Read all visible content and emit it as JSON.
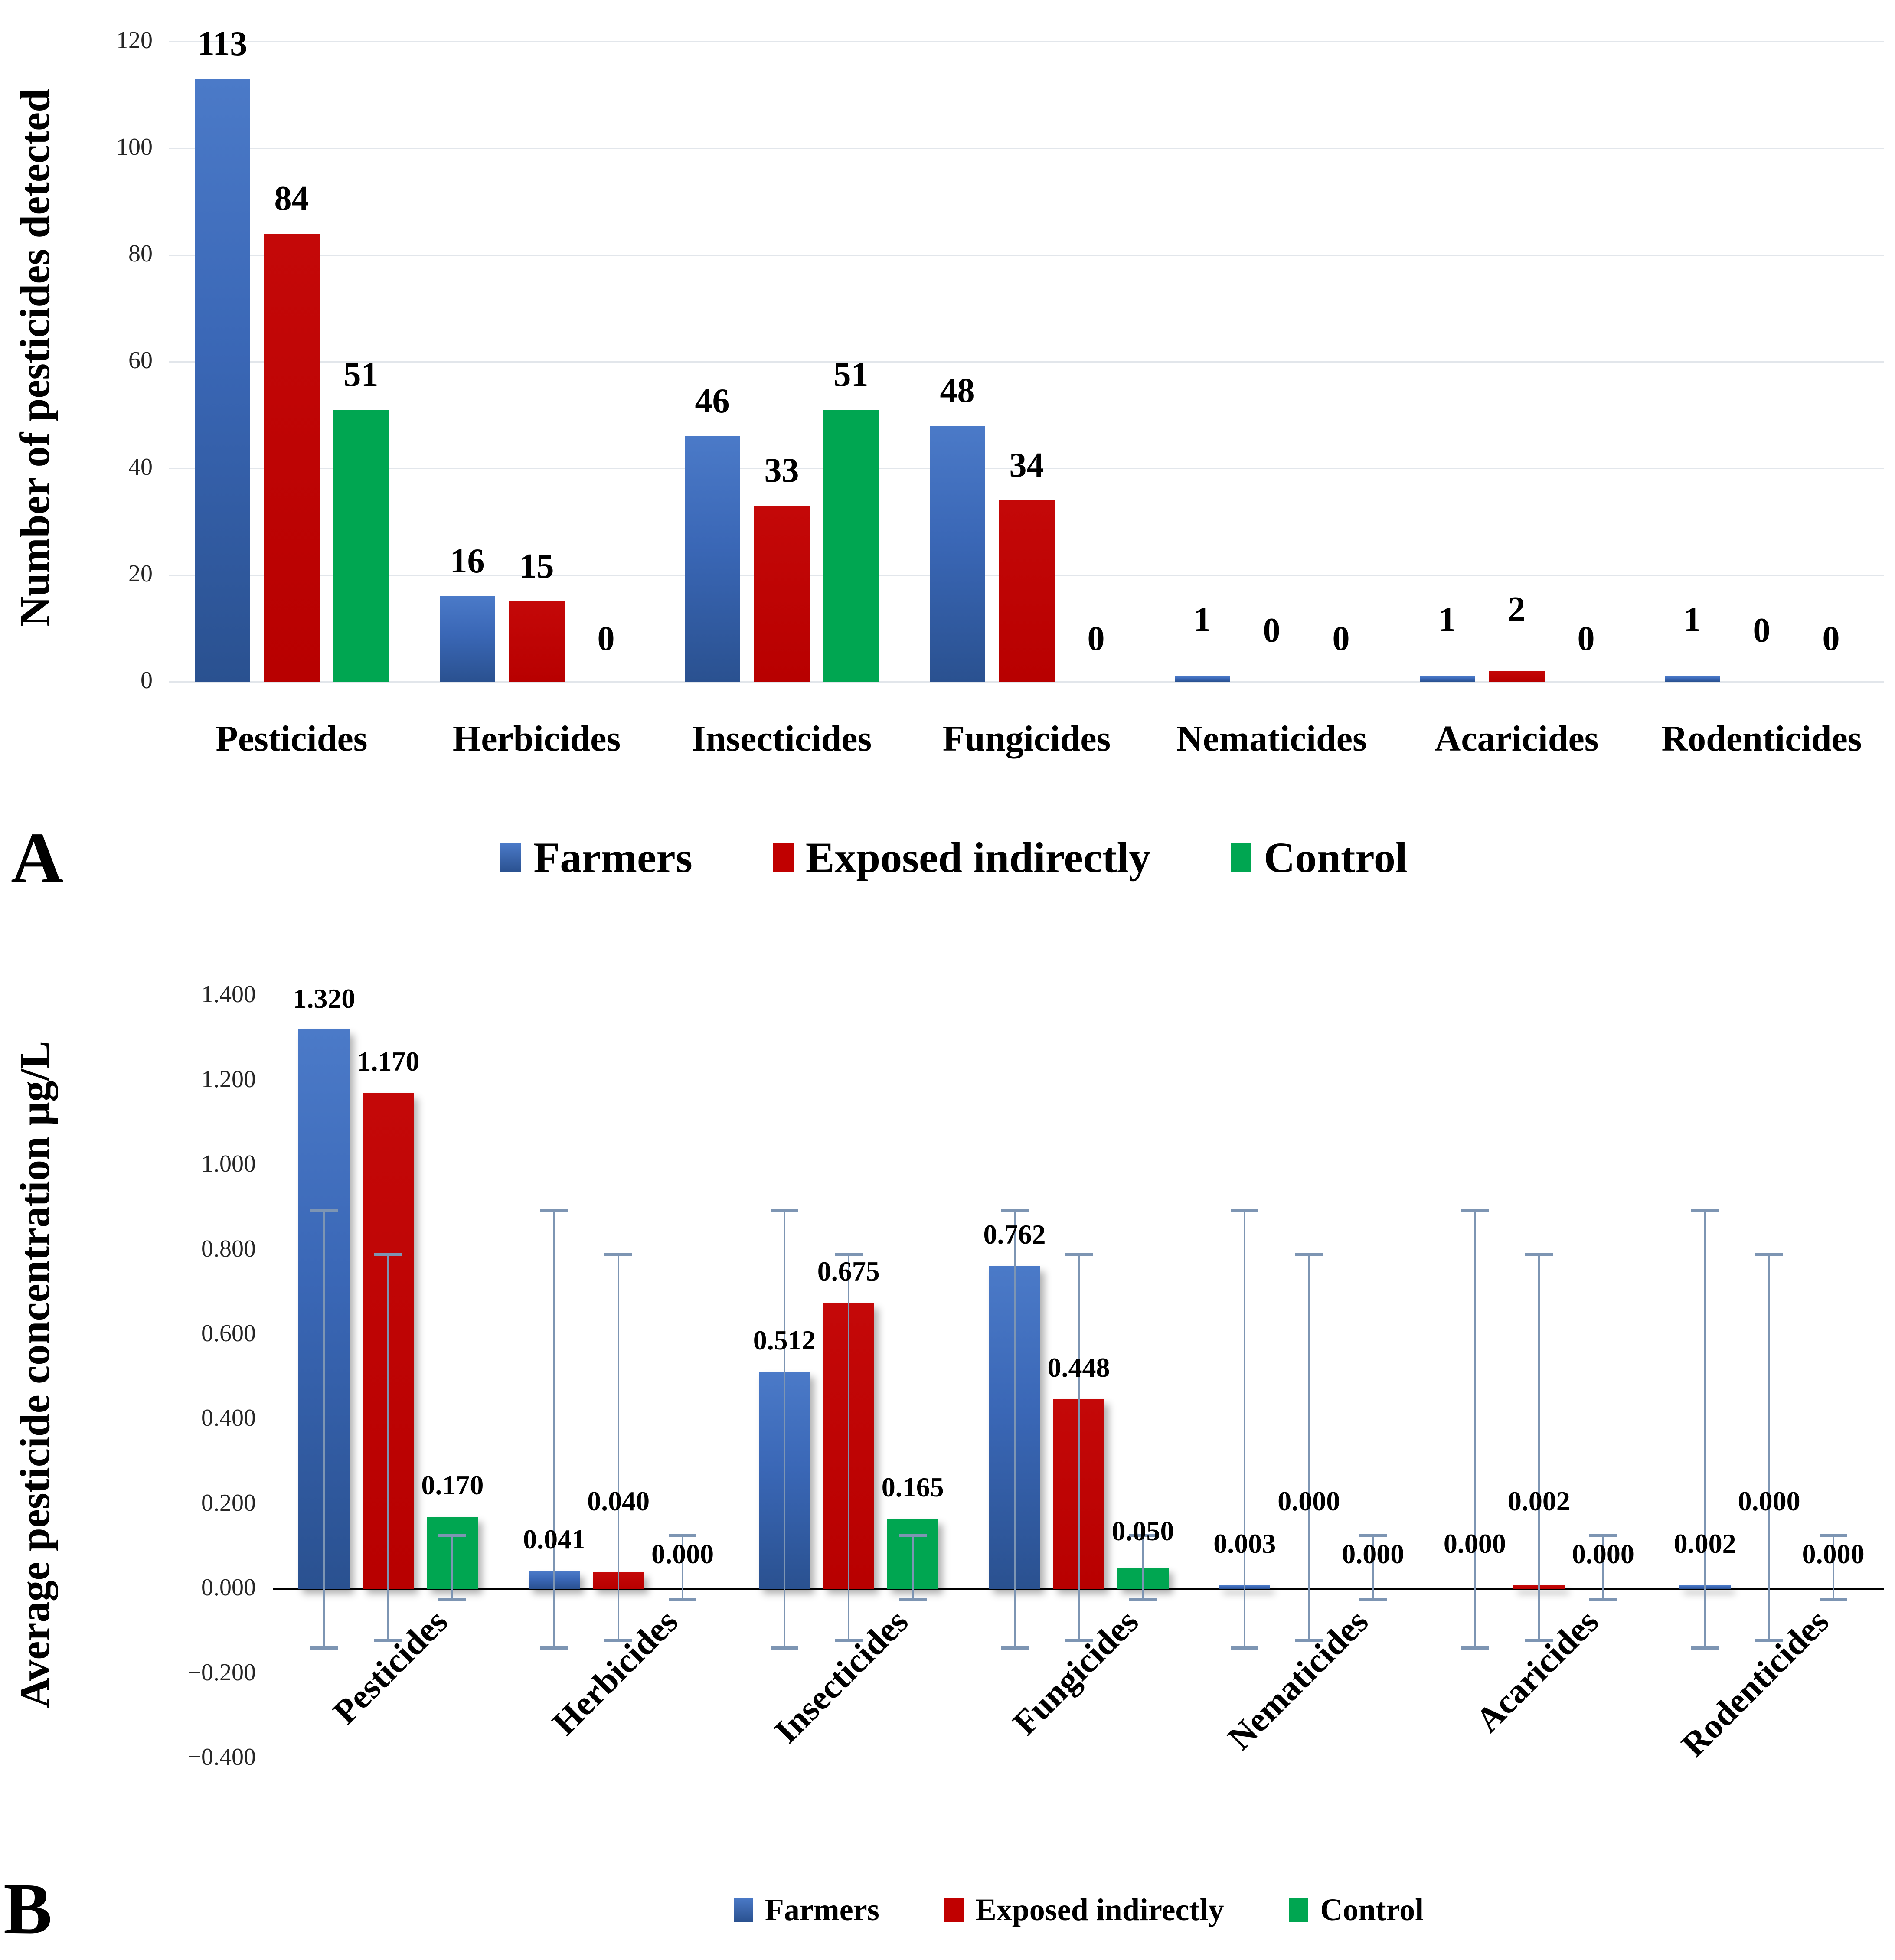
{
  "chart_data": [
    {
      "panel": "A",
      "letter": "A",
      "type": "bar",
      "ylabel": "Number of pesticides detected",
      "categories": [
        "Pesticides",
        "Herbicides",
        "Insecticides",
        "Fungicides",
        "Nematicides",
        "Acaricides",
        "Rodenticides"
      ],
      "series": [
        {
          "name": "Farmers",
          "color": "#3A67B6",
          "values": [
            113,
            16,
            46,
            48,
            1,
            1,
            1
          ],
          "labels": [
            "113",
            "16",
            "46",
            "48",
            "1",
            "1",
            "1"
          ],
          "label_y": [
            116.5,
            19.5,
            49.5,
            51.5,
            8.5,
            8.5,
            8.5
          ]
        },
        {
          "name": "Exposed indirectly",
          "color": "#C00000",
          "values": [
            84,
            15,
            33,
            34,
            0,
            2,
            0
          ],
          "labels": [
            "84",
            "15",
            "33",
            "34",
            "0",
            "2",
            "0"
          ],
          "label_y": [
            87.5,
            18.5,
            36.5,
            37.5,
            6.5,
            10.5,
            6.5
          ]
        },
        {
          "name": "Control",
          "color": "#00A651",
          "values": [
            51,
            0,
            51,
            0,
            0,
            0,
            0
          ],
          "labels": [
            "51",
            "0",
            "51",
            "0",
            "0",
            "0",
            "0"
          ],
          "label_y": [
            54.5,
            5,
            54.5,
            5,
            5,
            5,
            5
          ]
        }
      ],
      "yticks": [
        "0",
        "20",
        "40",
        "60",
        "80",
        "100",
        "120"
      ],
      "ytick_values": [
        0,
        20,
        40,
        60,
        80,
        100,
        120
      ],
      "ylim": [
        0,
        120
      ],
      "grid": true,
      "legend_position": "bottom",
      "legend_labels": [
        "Farmers",
        "Exposed indirectly",
        "Control"
      ]
    },
    {
      "panel": "B",
      "letter": "B",
      "type": "bar",
      "ylabel": "Average pesticide concentration µg/L",
      "categories": [
        "Pesticides",
        "Herbicides",
        "Insecticides",
        "Fungicides",
        "Nematicides",
        "Acaricides",
        "Rodenticides"
      ],
      "series": [
        {
          "name": "Farmers",
          "color": "#3A67B6",
          "values": [
            1.32,
            0.041,
            0.512,
            0.762,
            0.003,
            0.0,
            0.002
          ],
          "labels": [
            "1.320",
            "0.041",
            "0.512",
            "0.762",
            "0.003",
            "0.000",
            "0.002"
          ],
          "label_y": [
            1.362,
            0.085,
            0.555,
            0.805,
            0.075,
            0.075,
            0.075
          ],
          "error": {
            "low": -0.14,
            "high": 0.893
          }
        },
        {
          "name": "Exposed indirectly",
          "color": "#C00000",
          "values": [
            1.17,
            0.04,
            0.675,
            0.448,
            0.0,
            0.002,
            0.0
          ],
          "labels": [
            "1.170",
            "0.040",
            "0.675",
            "0.448",
            "0.000",
            "0.002",
            "0.000"
          ],
          "label_y": [
            1.213,
            0.175,
            0.718,
            0.491,
            0.175,
            0.175,
            0.175
          ],
          "error": {
            "low": -0.122,
            "high": 0.79
          }
        },
        {
          "name": "Control",
          "color": "#00A651",
          "values": [
            0.17,
            0.0,
            0.165,
            0.05,
            0.0,
            0.0,
            0.0
          ],
          "labels": [
            "0.170",
            "0.000",
            "0.165",
            "0.050",
            "0.000",
            "0.000",
            "0.000"
          ],
          "label_y": [
            0.213,
            0.05,
            0.208,
            0.105,
            0.05,
            0.05,
            0.05
          ],
          "error": {
            "low": -0.026,
            "high": 0.126
          }
        }
      ],
      "yticks": [
        "1.400",
        "1.200",
        "1.000",
        "0.800",
        "0.600",
        "0.400",
        "0.200",
        "0.000",
        "−0.200",
        "−0.400"
      ],
      "ytick_values": [
        1.4,
        1.2,
        1.0,
        0.8,
        0.6,
        0.4,
        0.2,
        0.0,
        -0.2,
        -0.4
      ],
      "ylim": [
        -0.4,
        1.4
      ],
      "grid": false,
      "error_bar_color": "#7D95B3",
      "legend_position": "bottom",
      "legend_labels": [
        "Farmers",
        "Exposed indirectly",
        "Control"
      ]
    }
  ],
  "colors": {
    "farmers_bar_top": "#4B7AC8",
    "farmers_bar_bottom": "#2A5190",
    "exposed_bar": "#C00000",
    "control_bar": "#00A651",
    "error_bar": "#7D95B3",
    "gridline": "#E2E6EB",
    "axis_line": "#000000",
    "tick_text": "#262626"
  }
}
